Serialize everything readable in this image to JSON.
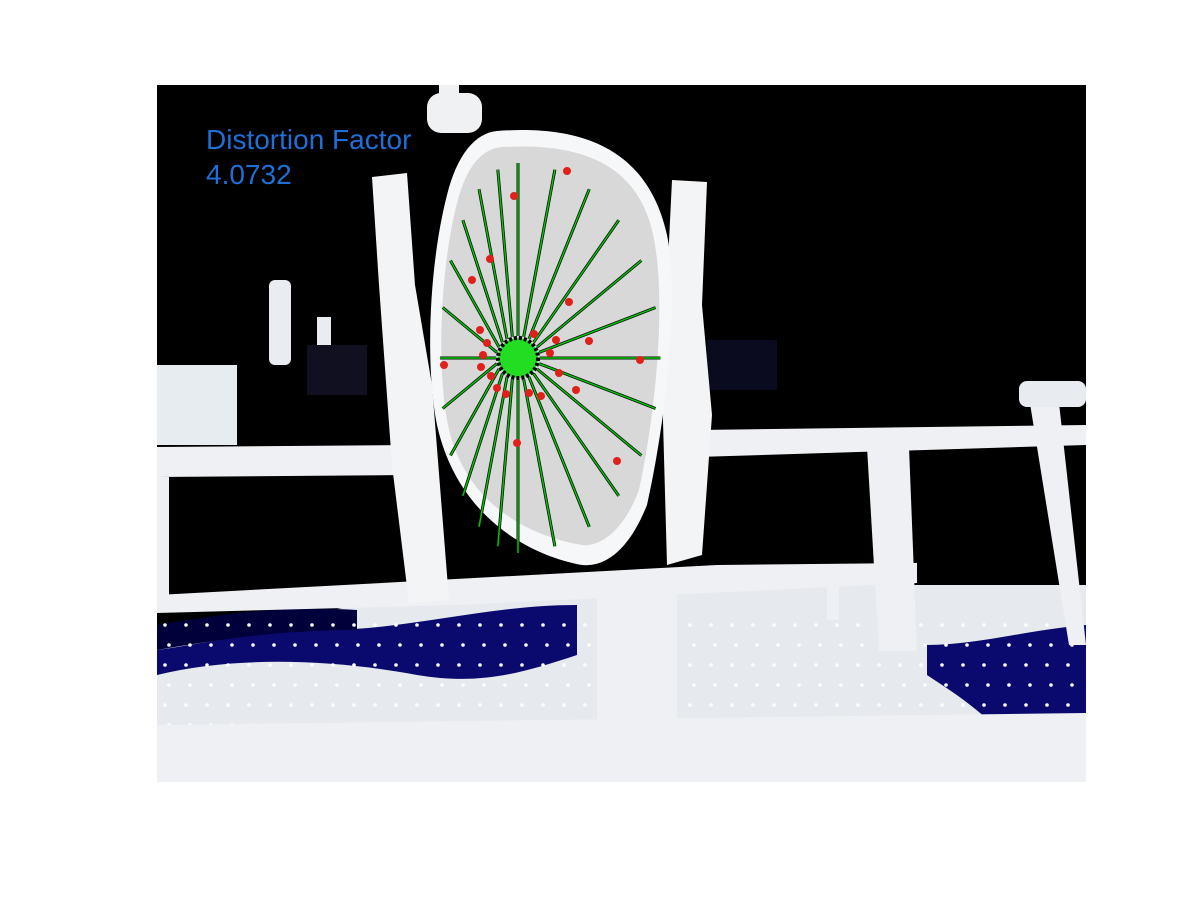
{
  "annotation": {
    "label": "Distortion Factor",
    "value": "4.0732"
  },
  "colors": {
    "background": "#000000",
    "surface": "#eef0f3",
    "panel": "#d9d9d9",
    "spoke": "#00c800",
    "marker": "#e0201a",
    "hub": "#22dd22",
    "annotation": "#1f6fd6",
    "floor_shadow": "#0a0a6e"
  },
  "marker_count": 24,
  "spoke_count": 24
}
